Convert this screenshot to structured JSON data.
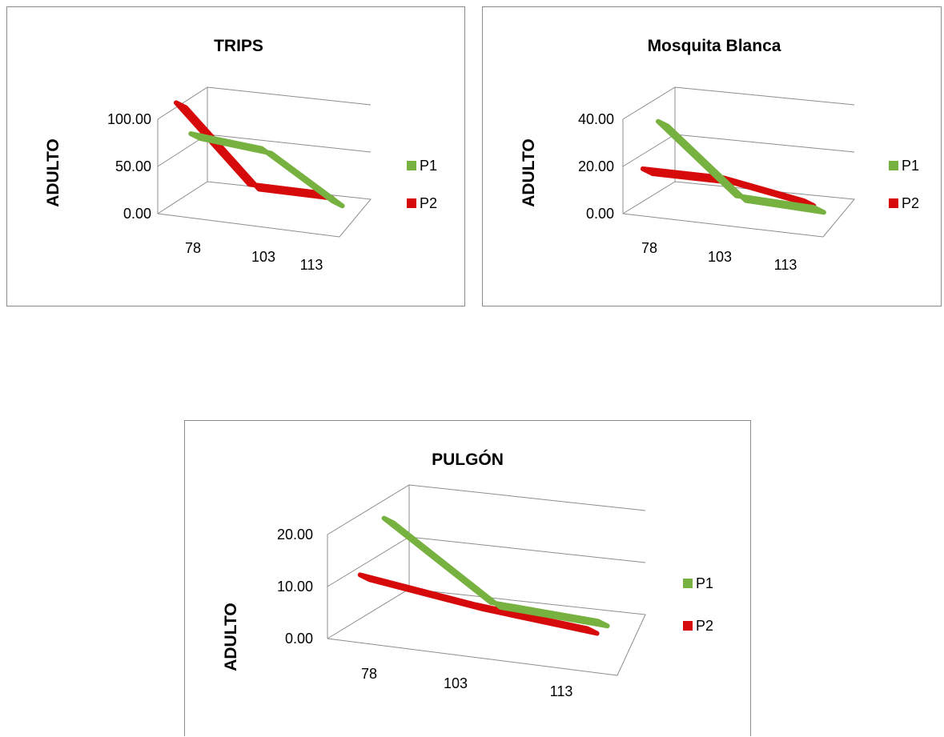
{
  "colors": {
    "P1": "#77b140",
    "P2": "#d60a0a",
    "grid": "#8c8c8c"
  },
  "chart_data": [
    {
      "type": "line",
      "title": "TRIPS",
      "ylabel": "ADULTO",
      "categories": [
        "78",
        "103",
        "113"
      ],
      "ylim": [
        0,
        100
      ],
      "yticks": [
        "0.00",
        "50.00",
        "100.00"
      ],
      "series": [
        {
          "name": "P1",
          "values": [
            62,
            55,
            8
          ]
        },
        {
          "name": "P2",
          "values": [
            105,
            28,
            28
          ]
        }
      ],
      "legend": "right"
    },
    {
      "type": "line",
      "title": "Mosquita Blanca",
      "ylabel": "ADULTO",
      "categories": [
        "78",
        "103",
        "113"
      ],
      "ylim": [
        0,
        40
      ],
      "yticks": [
        "0.00",
        "20.00",
        "40.00"
      ],
      "series": [
        {
          "name": "P1",
          "values": [
            30,
            2,
            0.5
          ]
        },
        {
          "name": "P2",
          "values": [
            14,
            14,
            8
          ]
        }
      ],
      "legend": "right"
    },
    {
      "type": "line",
      "title": "PULGÓN",
      "ylabel": "ADULTO",
      "categories": [
        "78",
        "103",
        "113"
      ],
      "ylim": [
        0,
        20
      ],
      "yticks": [
        "0.00",
        "10.00",
        "20.00"
      ],
      "series": [
        {
          "name": "P1",
          "values": [
            17,
            3.2,
            2
          ]
        },
        {
          "name": "P2",
          "values": [
            9,
            6,
            4
          ]
        }
      ],
      "legend": "right"
    }
  ]
}
